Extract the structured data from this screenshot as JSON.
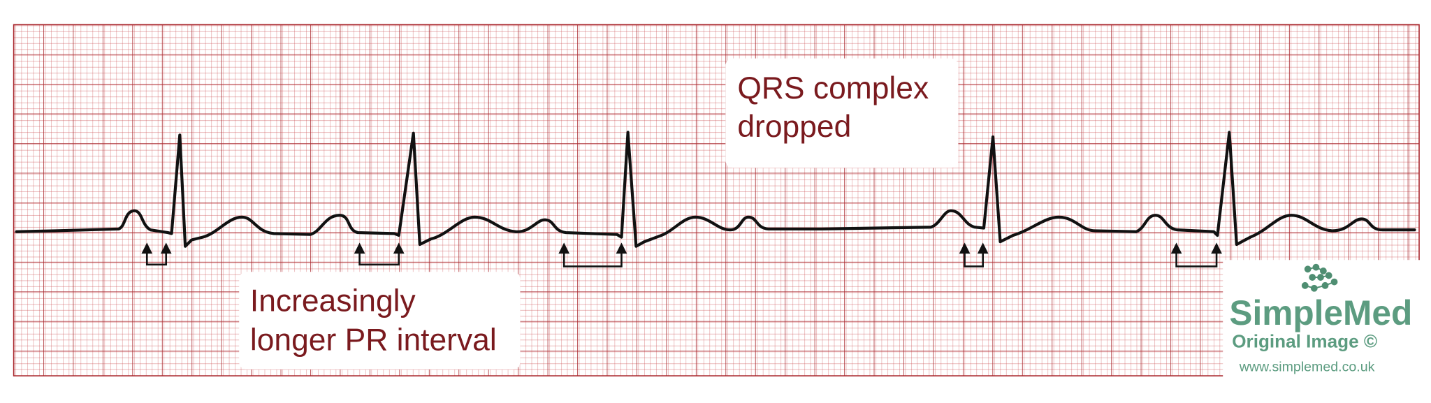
{
  "labels": {
    "dropped_qrs": [
      "QRS complex",
      "dropped"
    ],
    "pr_interval": [
      "Increasingly",
      "longer PR interval"
    ]
  },
  "logo": {
    "name": "SimpleMed",
    "subtitle": "Original Image ©",
    "url": "www.simplemed.co.uk"
  }
}
